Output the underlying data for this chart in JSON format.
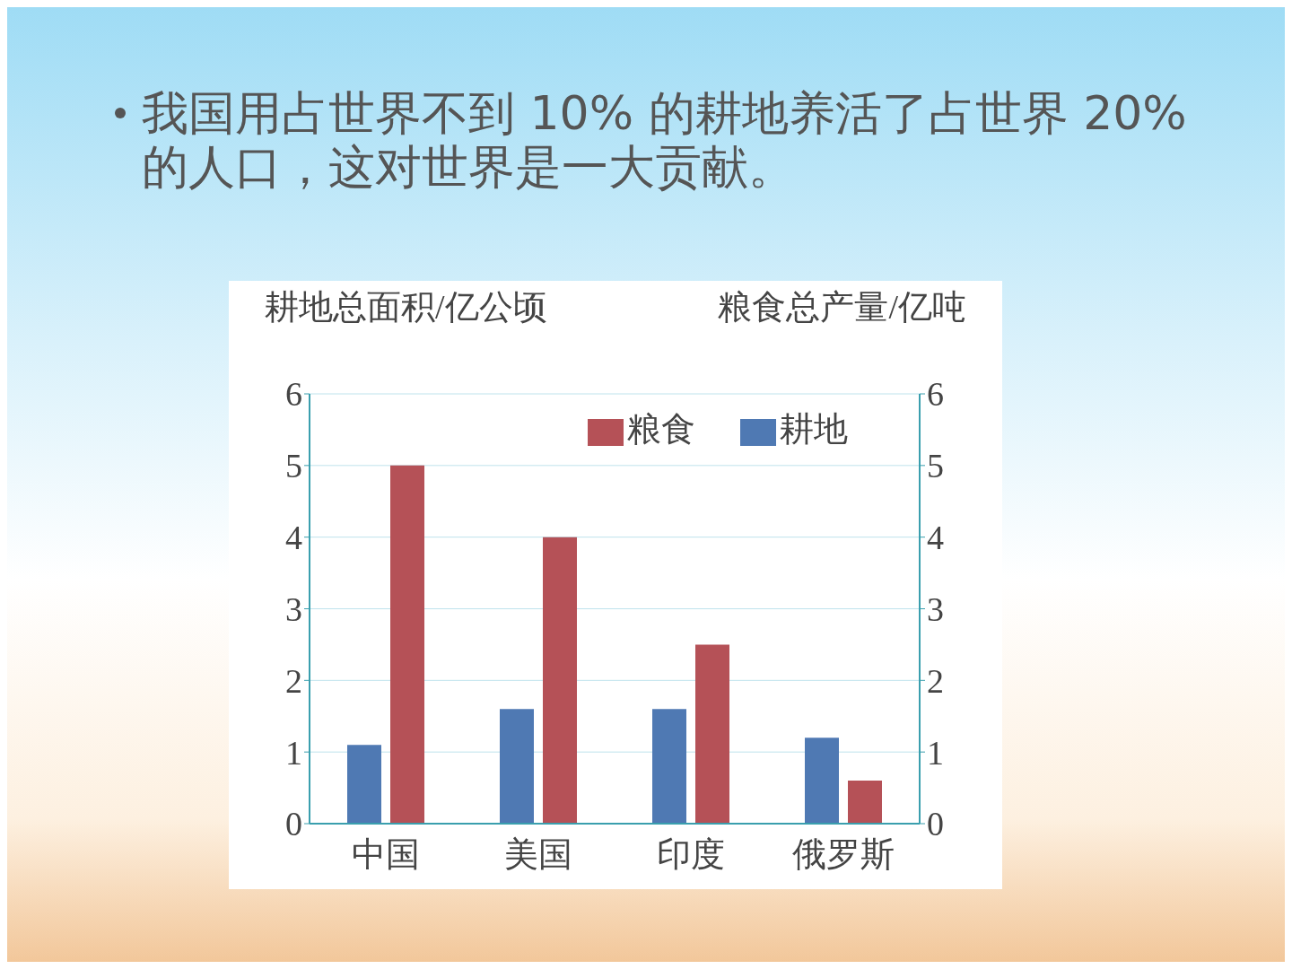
{
  "chart_data": {
    "type": "bar",
    "title": "我国用占世界不到 10% 的耕地养活了占世界 20% 的人口，这对世界是一大贡献。",
    "ylabel": "耕地总面积/亿公顷",
    "y2label": "粮食总产量/亿吨",
    "categories": [
      "中国",
      "美国",
      "印度",
      "俄罗斯"
    ],
    "series": [
      {
        "name": "耕地",
        "color": "#4f79b3",
        "values": [
          1.1,
          1.6,
          1.6,
          1.2
        ]
      },
      {
        "name": "粮食",
        "color": "#b55157",
        "values": [
          5.0,
          4.0,
          2.5,
          0.6
        ],
        "axis": "y2"
      }
    ],
    "ylim": [
      0,
      6
    ],
    "yticks": [
      0,
      1,
      2,
      3,
      4,
      5,
      6
    ],
    "y2lim": [
      0,
      6
    ],
    "y2ticks": [
      0,
      1,
      2,
      3,
      4,
      5,
      6
    ],
    "grid": "y",
    "legend": "top right"
  }
}
